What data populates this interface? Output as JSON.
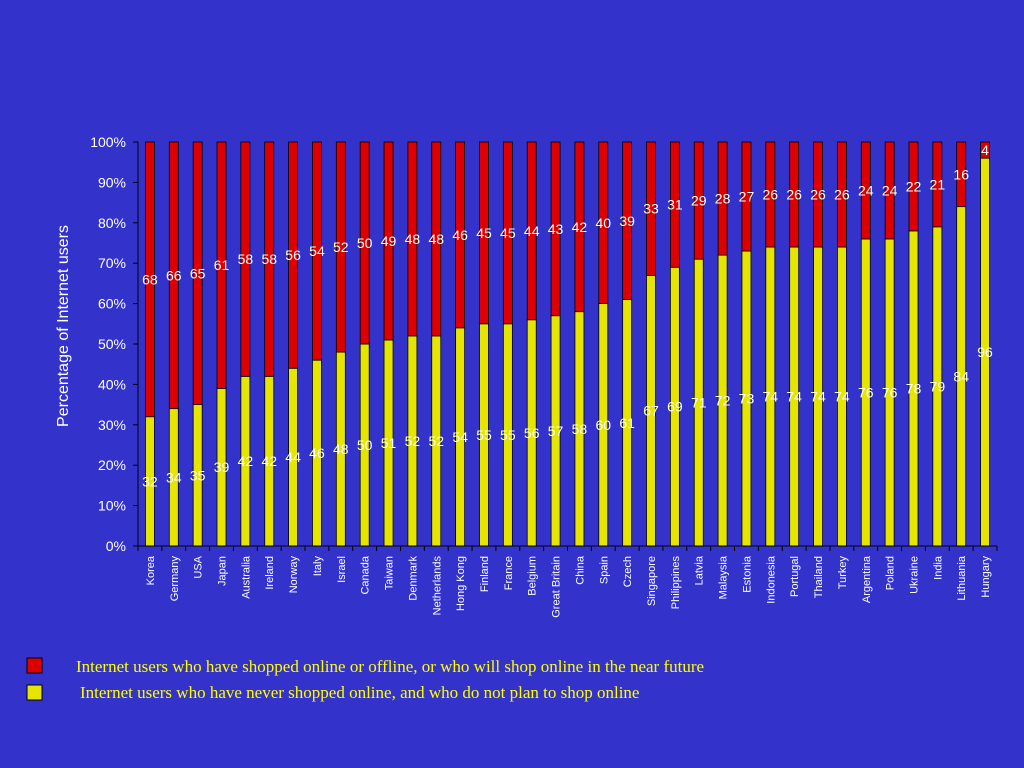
{
  "chart_data": {
    "type": "bar",
    "stacked": true,
    "percent_stacked": true,
    "ylabel": "Percentage of Internet users",
    "ylim": [
      0,
      100
    ],
    "yticks": [
      "0%",
      "10%",
      "20%",
      "30%",
      "40%",
      "50%",
      "60%",
      "70%",
      "80%",
      "90%",
      "100%"
    ],
    "grid": false,
    "legend_position": "bottom",
    "categories": [
      "Korea",
      "Germany",
      "USA",
      "Japan",
      "Australia",
      "Ireland",
      "Norway",
      "Italy",
      "Israel",
      "Canada",
      "Taiwan",
      "Denmark",
      "Netherlands",
      "Hong Kong",
      "Finland",
      "France",
      "Belgium",
      "Great Britain",
      "China",
      "Spain",
      "Czech",
      "Singapore",
      "Philippines",
      "Latvia",
      "Malaysia",
      "Estonia",
      "Indonesia",
      "Portugal",
      "Thailand",
      "Turkey",
      "Argentina",
      "Poland",
      "Ukraine",
      "India",
      "Lithuania",
      "Hungary"
    ],
    "series": [
      {
        "name": "Internet users who have never shopped online, and who do not plan to shop online",
        "color": "#e5e500",
        "label_color": "#ffffff",
        "values": [
          32,
          34,
          35,
          39,
          42,
          42,
          44,
          46,
          48,
          50,
          51,
          52,
          52,
          54,
          55,
          55,
          56,
          57,
          58,
          60,
          61,
          67,
          69,
          71,
          72,
          73,
          74,
          74,
          74,
          74,
          76,
          76,
          78,
          79,
          84,
          96
        ]
      },
      {
        "name": "Internet users who have shopped online or offline, or who will shop online in the near future",
        "color": "#dd0000",
        "label_color": "#ffffff",
        "values": [
          68,
          66,
          65,
          61,
          58,
          58,
          56,
          54,
          52,
          50,
          49,
          48,
          48,
          46,
          45,
          45,
          44,
          43,
          42,
          40,
          39,
          33,
          31,
          29,
          28,
          27,
          26,
          26,
          26,
          26,
          24,
          24,
          22,
          21,
          16,
          4
        ]
      }
    ],
    "legend": [
      {
        "label": "Internet users who have shopped online or offline, or who will shop online in the near future",
        "color": "#dd0000"
      },
      {
        "label": "Internet users who have never shopped online, and who do not plan to shop online",
        "color": "#e5e500"
      }
    ]
  }
}
